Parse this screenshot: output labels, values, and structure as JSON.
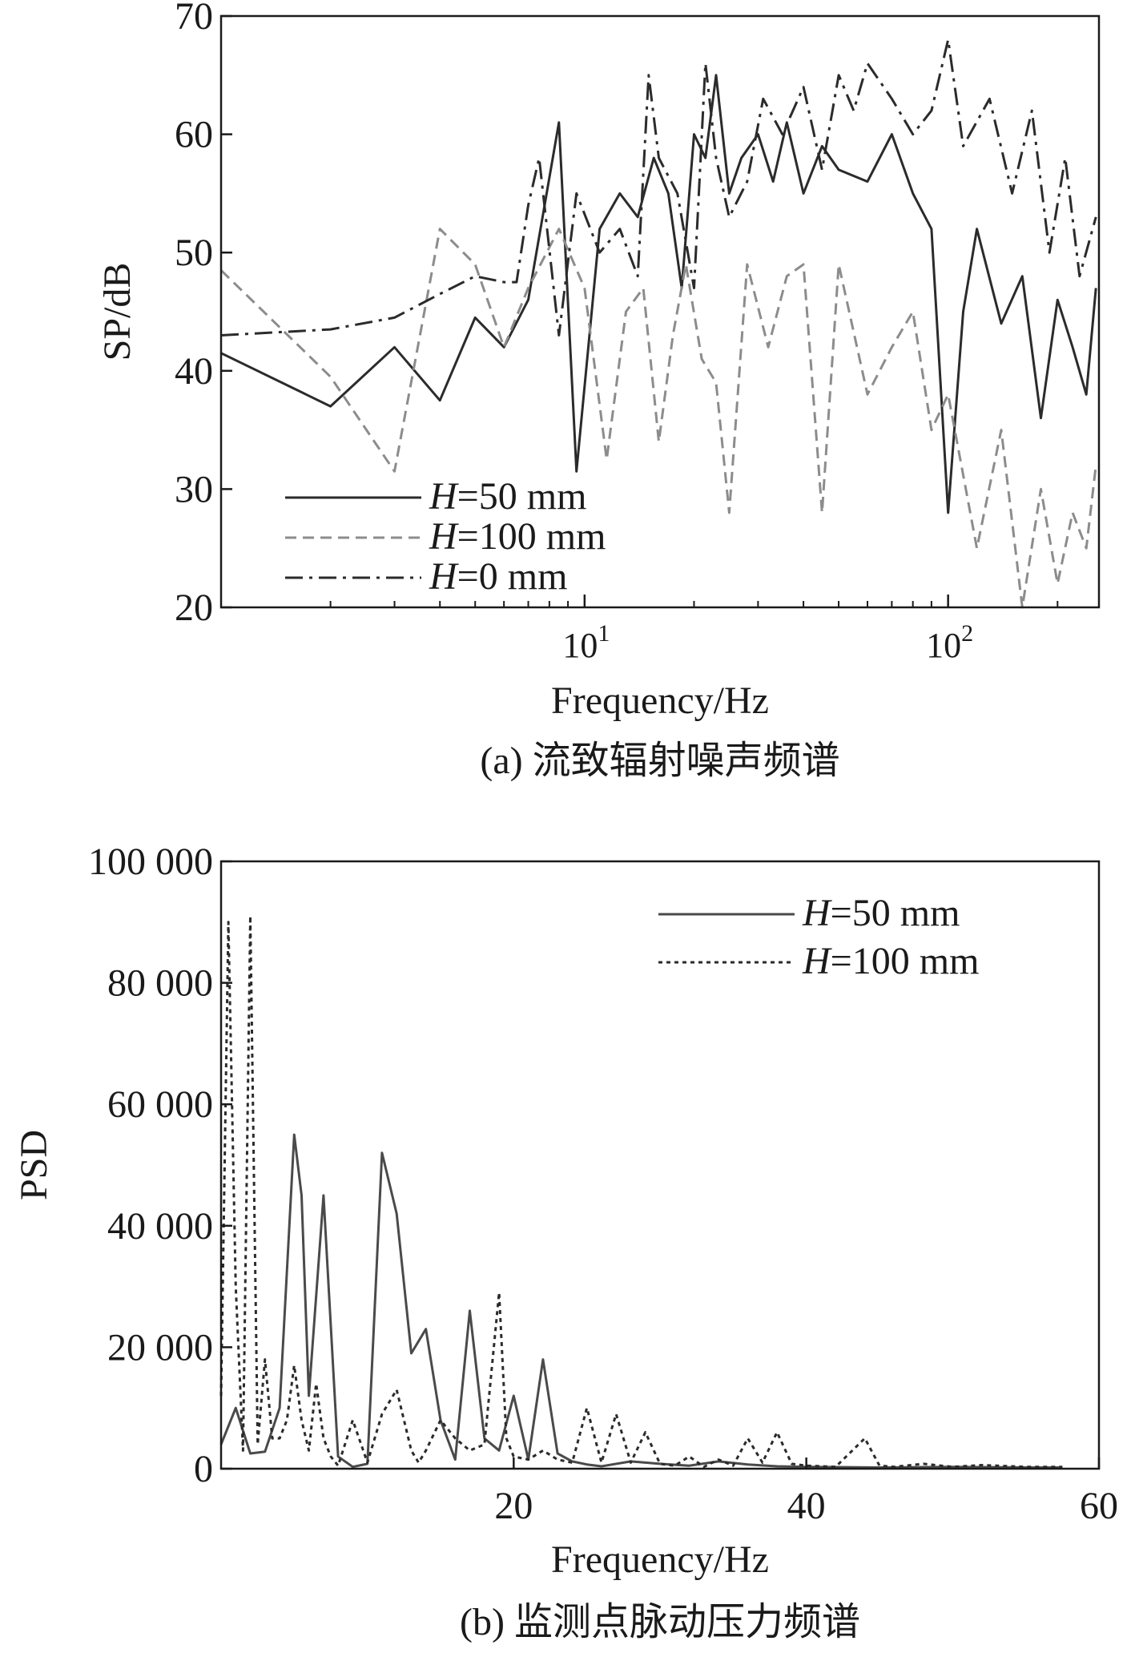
{
  "chart_data": [
    {
      "type": "line",
      "caption": "(a) 流致辐射噪声频谱",
      "xlabel": "Frequency/Hz",
      "ylabel": "SP/dB",
      "xscale": "log",
      "xlim": [
        1,
        260
      ],
      "ylim": [
        20,
        70
      ],
      "xticks": [
        {
          "value": 10,
          "base": "10",
          "exp": "1"
        },
        {
          "value": 100,
          "base": "10",
          "exp": "2"
        }
      ],
      "yticks": [
        20,
        30,
        40,
        50,
        60,
        70
      ],
      "grid": false,
      "legend_position": "bottom-left",
      "series": [
        {
          "name": "H=50 mm",
          "name_italic": "H",
          "name_rest": "=50 mm",
          "style": "solid",
          "color": "#2b2b2b",
          "x": [
            1,
            2,
            3,
            4,
            5,
            6,
            7,
            8.5,
            9.5,
            11,
            12.5,
            14,
            15.5,
            17,
            18.5,
            20,
            21.5,
            23,
            25,
            27,
            30,
            33,
            36,
            40,
            45,
            50,
            60,
            70,
            80,
            90,
            100,
            110,
            120,
            140,
            160,
            180,
            200,
            220,
            240,
            255
          ],
          "y": [
            41.5,
            37,
            42,
            37.5,
            44.5,
            42,
            46,
            61,
            31.5,
            52,
            55,
            53,
            58,
            55,
            47,
            60,
            58,
            65,
            55,
            58,
            60,
            56,
            61,
            55,
            59,
            57,
            56,
            60,
            55,
            52,
            28,
            45,
            52,
            44,
            48,
            36,
            46,
            42,
            38,
            47
          ]
        },
        {
          "name": "H=100 mm",
          "name_italic": "H",
          "name_rest": "=100 mm",
          "style": "dashed",
          "color": "#8c8c8c",
          "x": [
            1,
            2,
            3,
            4,
            5,
            6,
            7,
            8.5,
            10,
            11.5,
            13,
            14.5,
            16,
            17.5,
            19,
            21,
            23,
            25,
            28,
            32,
            36,
            40,
            45,
            50,
            60,
            70,
            80,
            90,
            100,
            120,
            140,
            160,
            180,
            200,
            220,
            240,
            255
          ],
          "y": [
            48.5,
            39.5,
            31.5,
            52,
            49,
            42,
            47,
            52,
            47,
            32.5,
            45,
            47,
            34,
            43,
            49,
            41,
            39,
            28,
            49,
            42,
            48,
            49,
            28,
            49,
            38,
            42,
            45,
            35,
            38,
            25,
            35,
            20,
            30,
            22,
            28,
            25,
            32
          ]
        },
        {
          "name": "H=0 mm",
          "name_italic": "H",
          "name_rest": "=0 mm",
          "style": "dashdot",
          "color": "#2b2b2b",
          "x": [
            1,
            2,
            3,
            4,
            5,
            6,
            6.5,
            7,
            7.5,
            8.5,
            9.5,
            11,
            12.5,
            14,
            15,
            16,
            18,
            20,
            21.5,
            23,
            25,
            28,
            31,
            35,
            40,
            45,
            50,
            55,
            60,
            70,
            80,
            90,
            100,
            110,
            130,
            150,
            170,
            190,
            210,
            230,
            255
          ],
          "y": [
            43,
            43.5,
            44.5,
            46.5,
            48,
            47.5,
            47.5,
            54,
            58,
            43,
            55,
            50,
            52,
            48,
            65,
            58,
            55,
            47,
            66,
            58,
            53,
            56,
            63,
            60,
            64,
            57,
            65,
            62,
            66,
            63,
            60,
            62,
            68,
            59,
            63,
            55,
            62,
            50,
            58,
            48,
            53
          ]
        }
      ]
    },
    {
      "type": "line",
      "caption": "(b) 监测点脉动压力频谱",
      "xlabel": "Frequency/Hz",
      "ylabel": "PSD",
      "xlim": [
        0,
        60
      ],
      "ylim": [
        0,
        100000
      ],
      "xticks": [
        20,
        40,
        60
      ],
      "yticks": [
        {
          "value": 0,
          "label": "0"
        },
        {
          "value": 20000,
          "label": "20 000"
        },
        {
          "value": 40000,
          "label": "40 000"
        },
        {
          "value": 60000,
          "label": "60 000"
        },
        {
          "value": 80000,
          "label": "80 000"
        },
        {
          "value": 100000,
          "label": "100 000"
        }
      ],
      "grid": false,
      "legend_position": "top-right",
      "series": [
        {
          "name": "H=50 mm",
          "name_italic": "H",
          "name_rest": "=50 mm",
          "style": "solid",
          "color": "#4a4a4a",
          "x": [
            0,
            1,
            2,
            3,
            4,
            5,
            5.5,
            6,
            7,
            8,
            9,
            10,
            11,
            12,
            13,
            14,
            15,
            16,
            17,
            18,
            19,
            20,
            21,
            22,
            23,
            24,
            25,
            26,
            28,
            30,
            32,
            34,
            36,
            38,
            40,
            45,
            50,
            55,
            57.5
          ],
          "y": [
            4000,
            10000,
            2500,
            2800,
            10000,
            55000,
            45000,
            12000,
            45000,
            2000,
            300,
            800,
            52000,
            42000,
            19000,
            23000,
            8000,
            1500,
            26000,
            5000,
            3000,
            12000,
            1500,
            18000,
            2500,
            1200,
            700,
            400,
            1200,
            800,
            500,
            1200,
            700,
            400,
            300,
            200,
            300,
            200,
            200
          ]
        },
        {
          "name": "H=100 mm",
          "name_italic": "H",
          "name_rest": "=100 mm",
          "style": "dotted",
          "color": "#2b2b2b",
          "x": [
            0,
            0.5,
            1,
            1.5,
            2,
            2.5,
            3,
            3.5,
            4,
            4.5,
            5,
            5.5,
            6,
            6.5,
            7,
            7.5,
            8,
            9,
            10,
            11,
            12,
            13,
            13.5,
            14,
            15,
            16,
            17,
            18,
            19,
            19.5,
            20,
            21,
            22,
            23,
            24,
            25,
            26,
            27,
            28,
            29,
            30,
            31,
            32,
            33,
            34,
            35,
            36,
            37,
            38,
            39,
            40,
            42,
            44,
            45,
            46,
            48,
            50,
            52,
            55,
            57.5
          ],
          "y": [
            12000,
            90000,
            30000,
            3000,
            91000,
            4000,
            18000,
            5000,
            5000,
            8000,
            17000,
            8000,
            3000,
            14000,
            5000,
            2000,
            500,
            8000,
            1000,
            9000,
            13000,
            3000,
            1000,
            3000,
            8000,
            5000,
            3000,
            4000,
            29000,
            5000,
            2000,
            1500,
            3000,
            1500,
            1000,
            10000,
            1000,
            9000,
            1000,
            6000,
            800,
            500,
            2000,
            300,
            1500,
            500,
            5000,
            1000,
            6000,
            800,
            500,
            300,
            5000,
            500,
            300,
            800,
            300,
            600,
            300,
            300
          ]
        }
      ]
    }
  ]
}
